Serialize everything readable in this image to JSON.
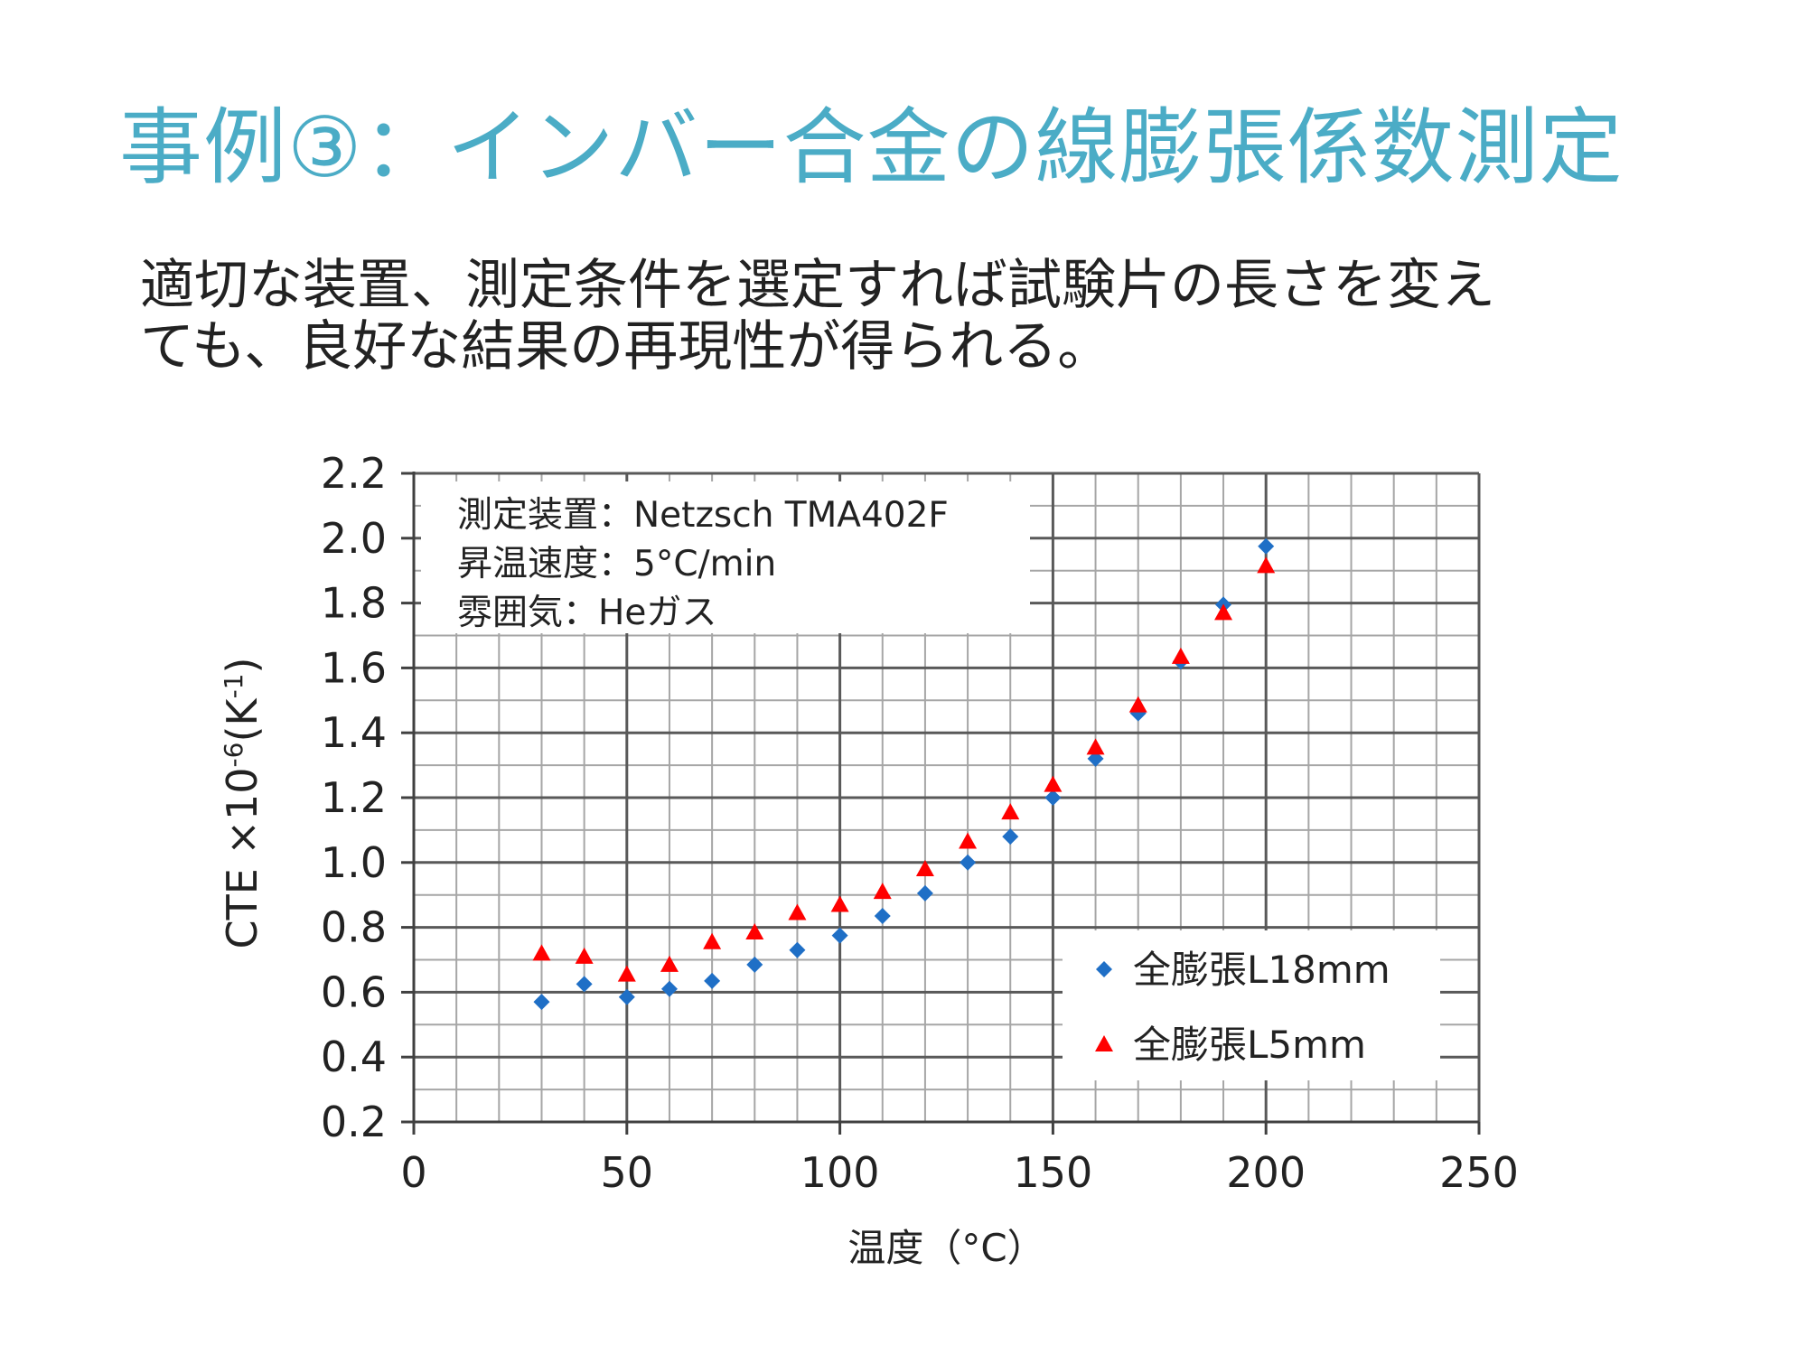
{
  "slide": {
    "title": "事例③：インバー合金の線膨張係数測定",
    "body_lines": [
      "適切な装置、測定条件を選定すれば試験片の長さを変え",
      "ても、良好な結果の再現性が得られる。"
    ]
  },
  "colors": {
    "title": "#4bacc6",
    "series_l18": "#1f6fc6",
    "series_l5": "#ff0000",
    "grid_minor": "#a6a6a6",
    "grid_major": "#595959"
  },
  "chart_data": {
    "type": "scatter",
    "xlabel": "温度（°C）",
    "ylabel": {
      "text": "CTE ×10",
      "sup1": "-6",
      "mid": "(K",
      "sup2": "-1",
      "end": ")"
    },
    "xlim": [
      0,
      250
    ],
    "ylim": [
      0.2,
      2.2
    ],
    "x_ticks": [
      "0",
      "50",
      "100",
      "150",
      "200",
      "250"
    ],
    "y_ticks": [
      "0.2",
      "0.4",
      "0.6",
      "0.8",
      "1.0",
      "1.2",
      "1.4",
      "1.6",
      "1.8",
      "2.0",
      "2.2"
    ],
    "grid": true,
    "annotation_lines": [
      "測定装置：Netzsch TMA402F",
      "昇温速度：5°C/min",
      "雰囲気：Heガス"
    ],
    "legend_position": "bottom-right",
    "series": [
      {
        "name": "全膨張L18mm",
        "marker": "diamond",
        "color": "#1f6fc6",
        "points": [
          [
            30,
            0.57
          ],
          [
            40,
            0.625
          ],
          [
            50,
            0.585
          ],
          [
            60,
            0.61
          ],
          [
            70,
            0.635
          ],
          [
            80,
            0.685
          ],
          [
            90,
            0.73
          ],
          [
            100,
            0.775
          ],
          [
            110,
            0.835
          ],
          [
            120,
            0.905
          ],
          [
            130,
            1.0
          ],
          [
            140,
            1.08
          ],
          [
            150,
            1.2
          ],
          [
            160,
            1.32
          ],
          [
            170,
            1.46
          ],
          [
            180,
            1.62
          ],
          [
            190,
            1.795
          ],
          [
            200,
            1.975
          ]
        ]
      },
      {
        "name": "全膨張L5mm",
        "marker": "triangle",
        "color": "#ff0000",
        "points": [
          [
            30,
            0.72
          ],
          [
            40,
            0.71
          ],
          [
            50,
            0.655
          ],
          [
            60,
            0.685
          ],
          [
            70,
            0.755
          ],
          [
            80,
            0.785
          ],
          [
            90,
            0.845
          ],
          [
            100,
            0.87
          ],
          [
            110,
            0.91
          ],
          [
            120,
            0.98
          ],
          [
            130,
            1.065
          ],
          [
            140,
            1.155
          ],
          [
            150,
            1.24
          ],
          [
            160,
            1.355
          ],
          [
            170,
            1.485
          ],
          [
            180,
            1.635
          ],
          [
            190,
            1.77
          ],
          [
            200,
            1.915
          ]
        ]
      }
    ]
  }
}
